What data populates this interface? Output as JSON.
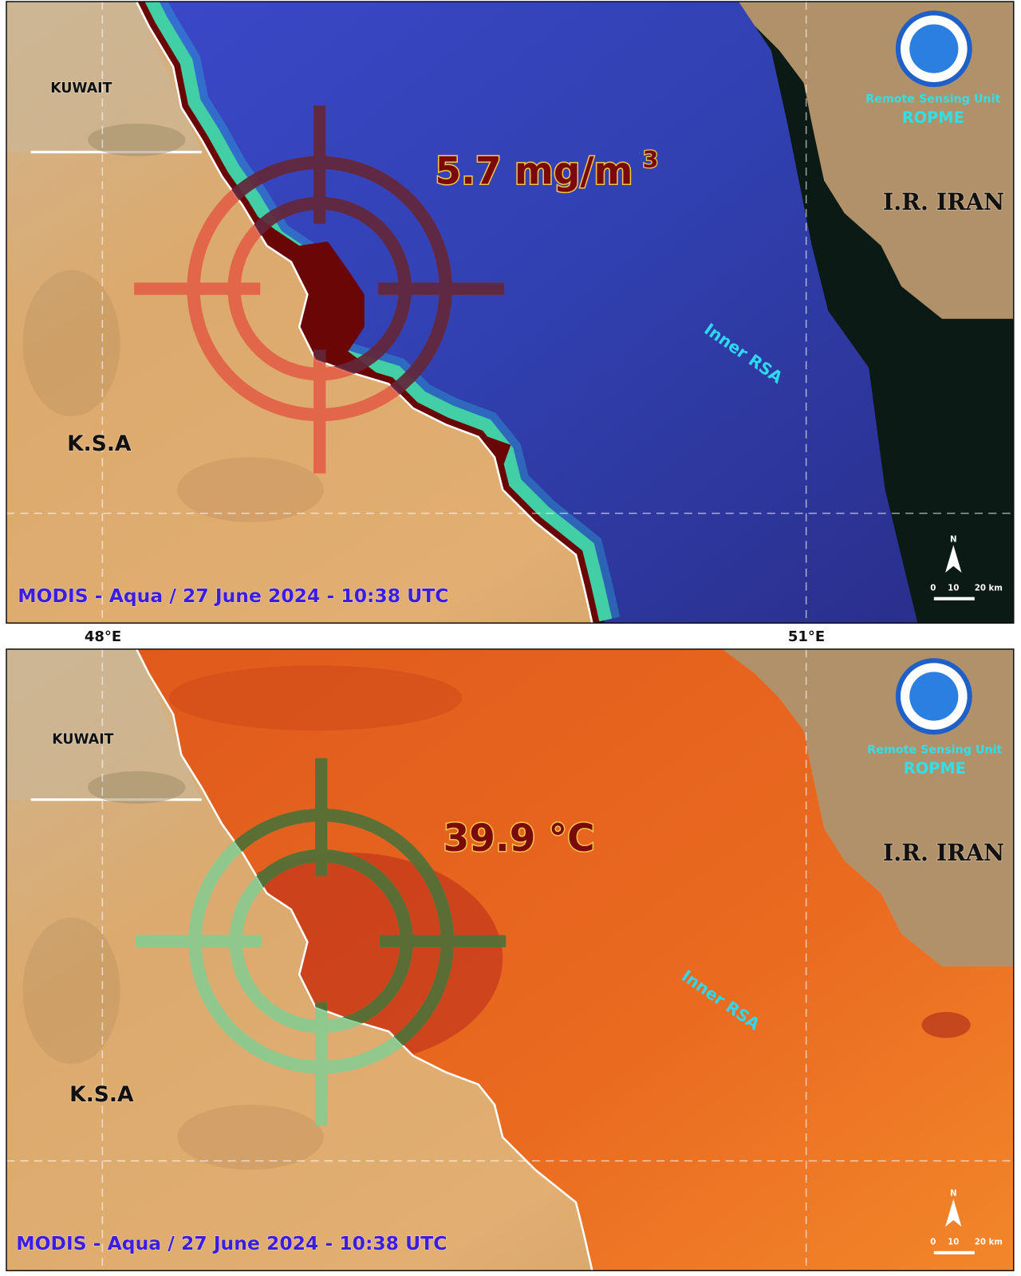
{
  "longitude_labels": [
    "48°E",
    "51°E"
  ],
  "panels": [
    {
      "country_labels": [
        "KUWAIT",
        "K.S.A",
        "I.R. IRAN"
      ],
      "measurement": "5.7 mg/m",
      "measurement_superscript": "3",
      "region_label": "Inner RSA",
      "logo": {
        "unit": "Remote Sensing Unit",
        "org": "ROPME"
      },
      "caption": "MODIS - Aqua / 27 June 2024 - 10:38 UTC",
      "north": "N",
      "scale_labels": [
        "0",
        "10",
        "20 km"
      ]
    },
    {
      "country_labels": [
        "KUWAIT",
        "K.S.A",
        "I.R. IRAN"
      ],
      "measurement": "39.9 °C",
      "region_label": "Inner RSA",
      "logo": {
        "unit": "Remote Sensing Unit",
        "org": "ROPME"
      },
      "caption": "MODIS - Aqua / 27 June 2024 - 10:38 UTC",
      "north": "N",
      "scale_labels": [
        "0",
        "10",
        "20 km"
      ]
    }
  ]
}
